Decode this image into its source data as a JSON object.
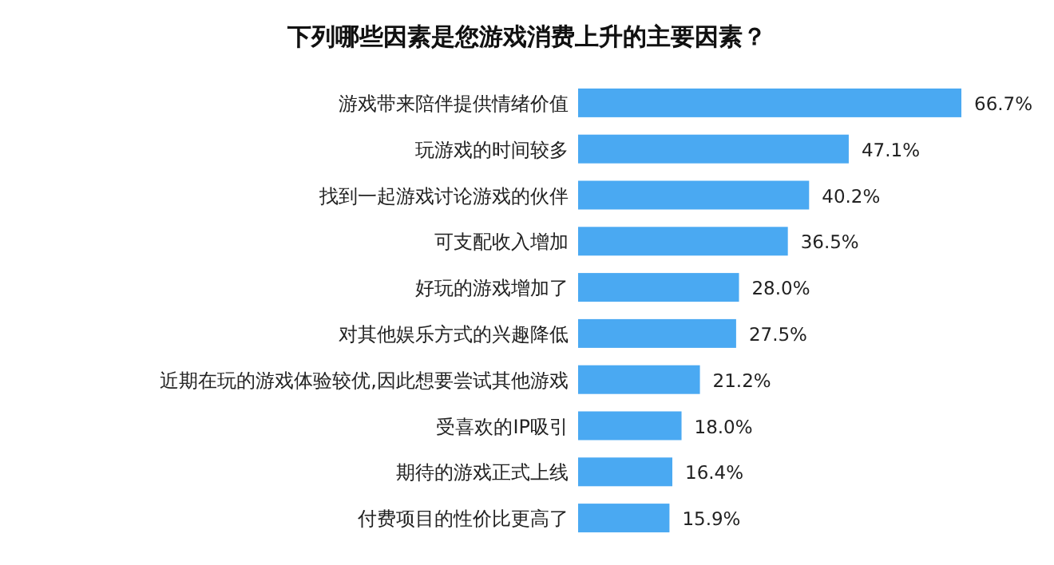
{
  "chart_data": {
    "type": "bar",
    "orientation": "horizontal",
    "title": "下列哪些因素是您游戏消费上升的主要因素？",
    "categories": [
      "游戏带来陪伴提供情绪价值",
      "玩游戏的时间较多",
      "找到一起游戏讨论游戏的伙伴",
      "可支配收入增加",
      "好玩的游戏增加了",
      "对其他娱乐方式的兴趣降低",
      "近期在玩的游戏体验较优,因此想要尝试其他游戏",
      "受喜欢的IP吸引",
      "期待的游戏正式上线",
      "付费项目的性价比更高了"
    ],
    "values": [
      66.7,
      47.1,
      40.2,
      36.5,
      28.0,
      27.5,
      21.2,
      18.0,
      16.4,
      15.9
    ],
    "value_labels": [
      "66.7%",
      "47.1%",
      "40.2%",
      "36.5%",
      "28.0%",
      "27.5%",
      "21.2%",
      "18.0%",
      "16.4%",
      "15.9%"
    ],
    "color": "#4aa9f2"
  }
}
